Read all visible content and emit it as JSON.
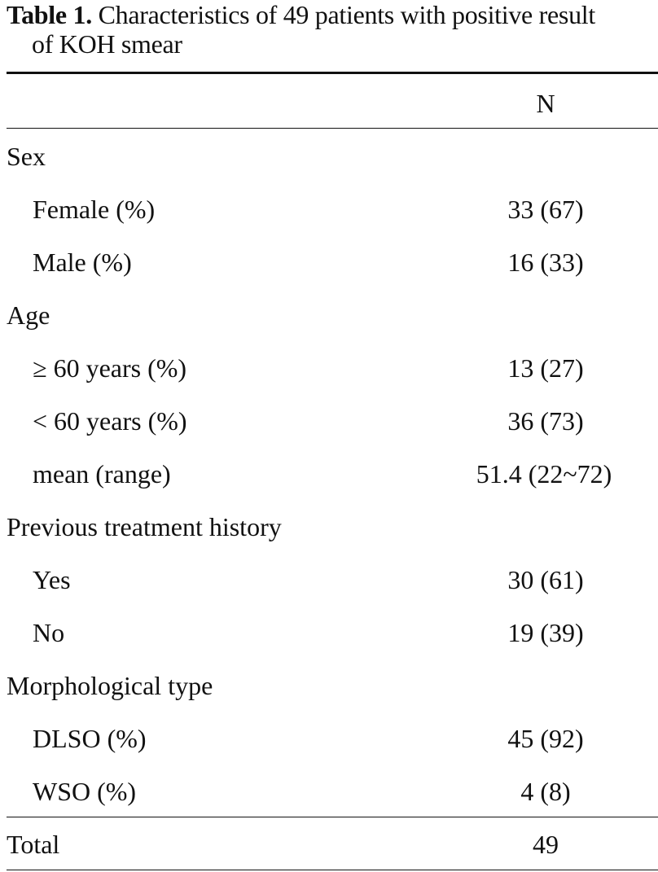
{
  "caption": {
    "label": "Table 1.",
    "text_line1": " Characteristics of 49 patients with positive result",
    "text_line2": "of KOH smear"
  },
  "header": {
    "n": "N"
  },
  "rows": [
    {
      "label": "Sex",
      "value": ""
    },
    {
      "label": "Female (%)",
      "value": "33 (67)"
    },
    {
      "label": "Male (%)",
      "value": "16 (33)"
    },
    {
      "label": "Age",
      "value": ""
    },
    {
      "label": "≥ 60 years (%)",
      "value": "13 (27)"
    },
    {
      "label": "< 60 years (%)",
      "value": "36 (73)"
    },
    {
      "label": "mean (range)",
      "value": "51.4 (22~72)"
    },
    {
      "label": "Previous treatment history",
      "value": ""
    },
    {
      "label": "Yes",
      "value": "30 (61)"
    },
    {
      "label": "No",
      "value": "19 (39)"
    },
    {
      "label": "Morphological type",
      "value": ""
    },
    {
      "label": "DLSO (%)",
      "value": "45 (92)"
    },
    {
      "label": "WSO (%)",
      "value": "4 (8)"
    }
  ],
  "total": {
    "label": "Total",
    "value": "49"
  }
}
